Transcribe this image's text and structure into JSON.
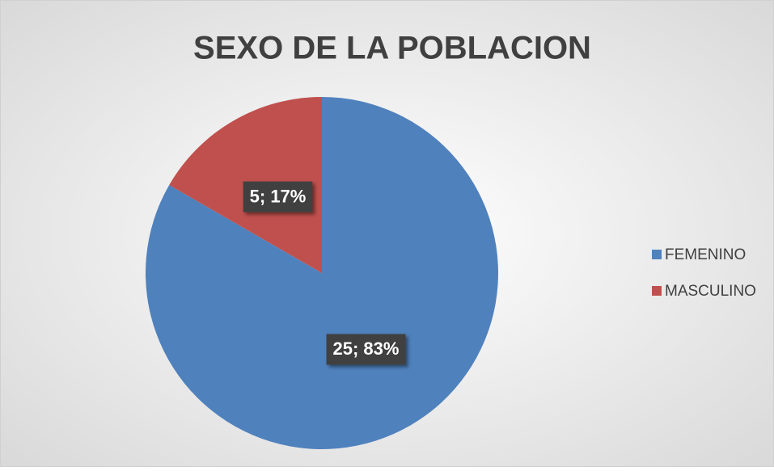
{
  "chart_data": {
    "type": "pie",
    "title": "SEXO DE LA POBLACION",
    "categories": [
      "FEMENINO",
      "MASCULINO"
    ],
    "values": [
      25,
      5
    ],
    "value_labels": [
      "25; 83%",
      "5; 17%"
    ],
    "colors": [
      "#4f81bd",
      "#c0504d"
    ],
    "legend": "right"
  }
}
